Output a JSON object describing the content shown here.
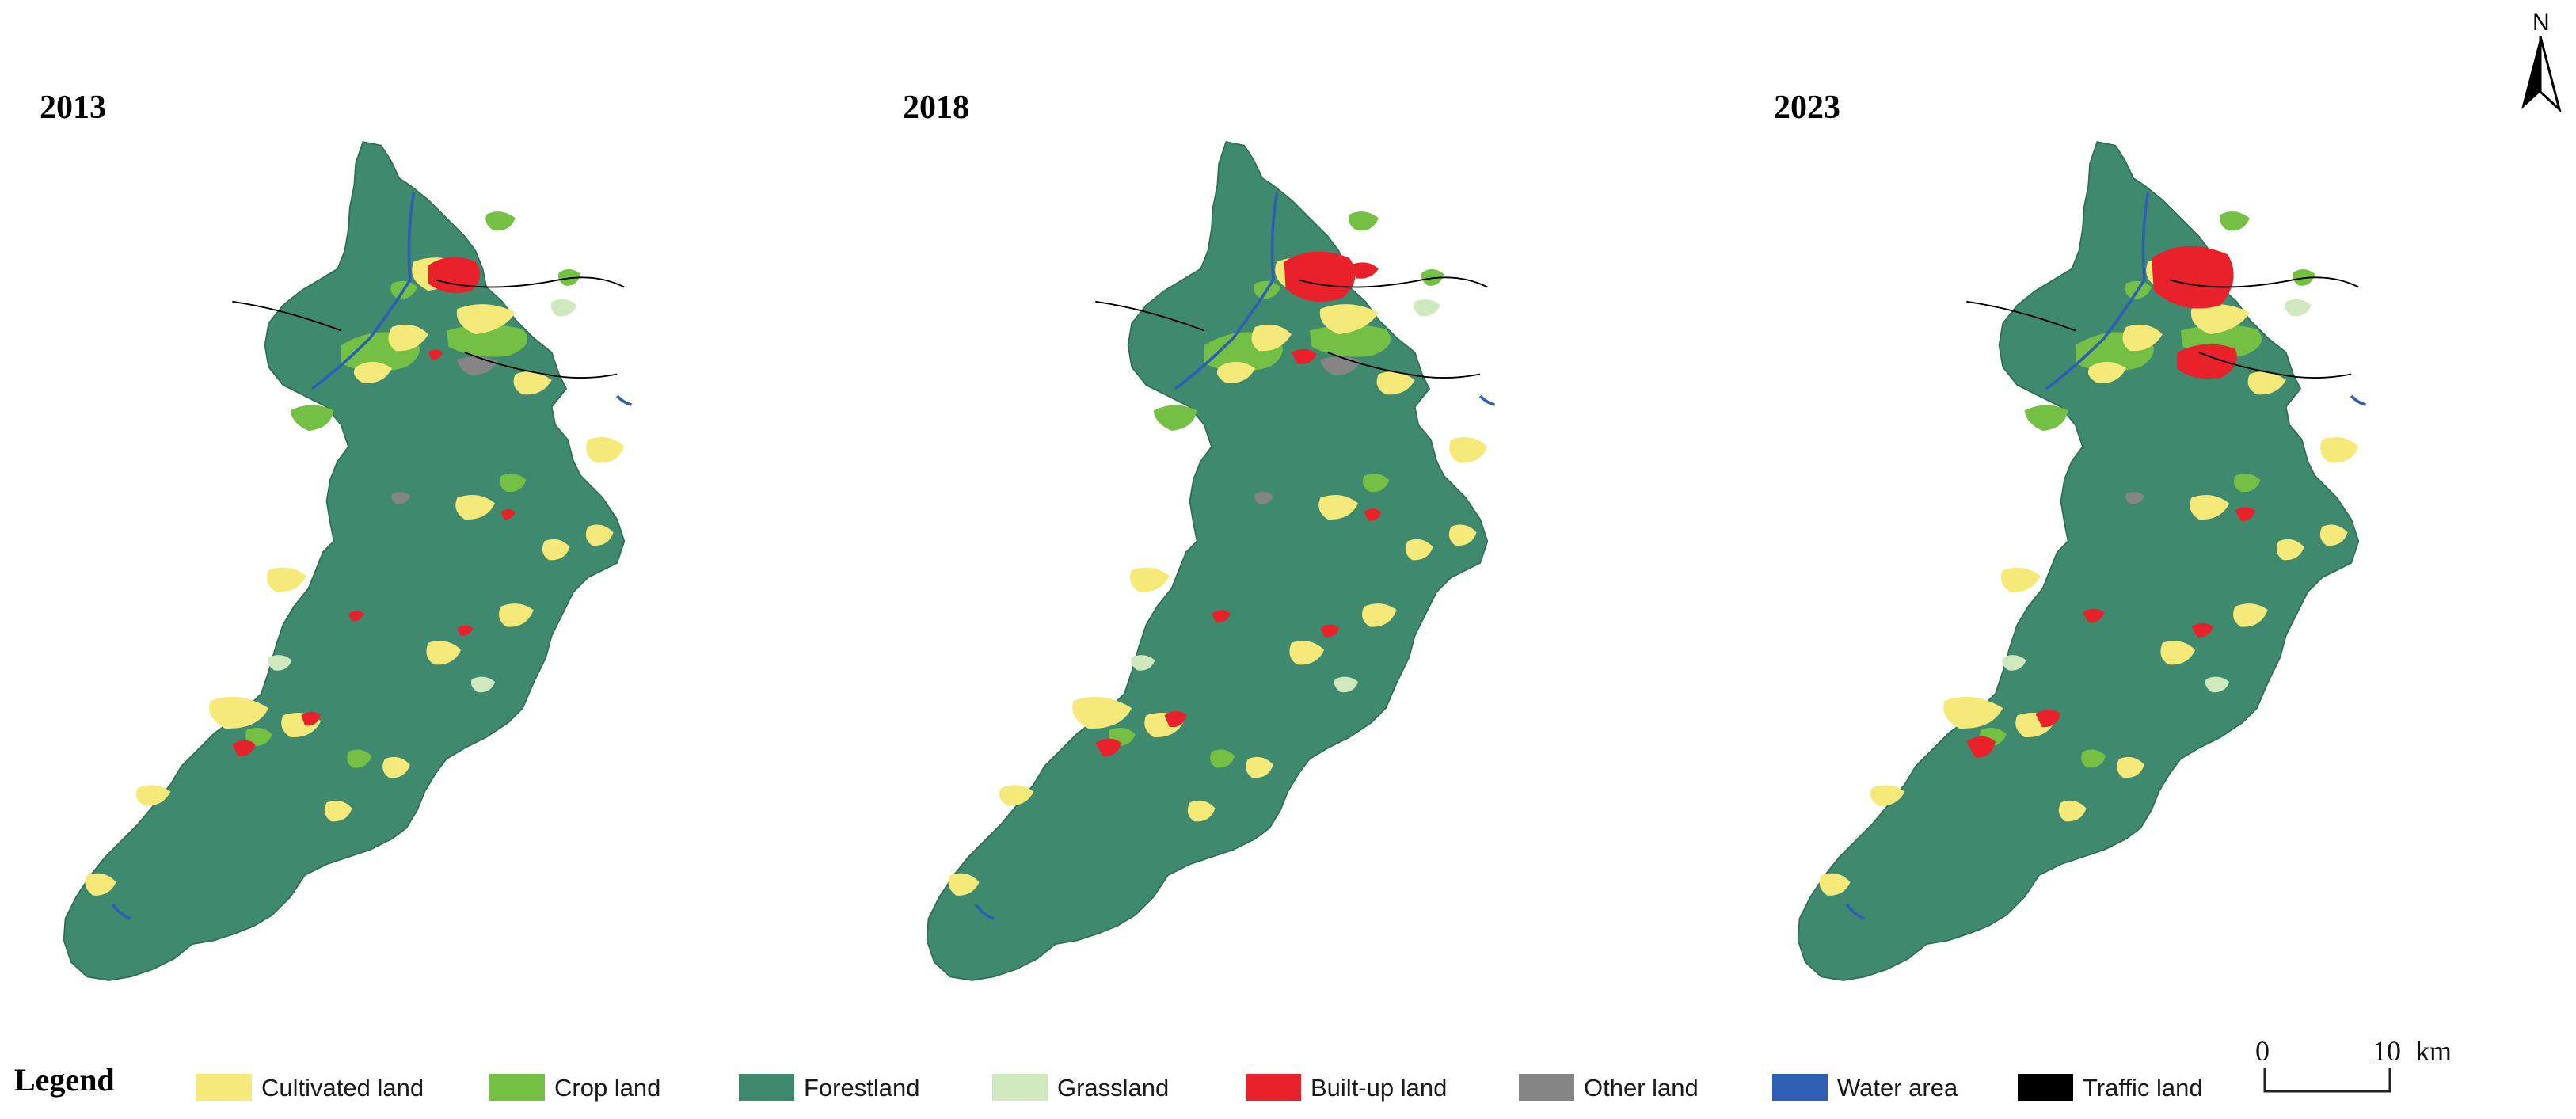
{
  "maps": [
    {
      "year": "2013"
    },
    {
      "year": "2018"
    },
    {
      "year": "2023"
    }
  ],
  "north_arrow": {
    "label": "N",
    "icon": "north-arrow-icon"
  },
  "legend": {
    "title": "Legend",
    "items": [
      {
        "label": "Cultivated land",
        "color": "#f5e97a"
      },
      {
        "label": "Crop land",
        "color": "#74c044"
      },
      {
        "label": "Forestland",
        "color": "#3f8a6e"
      },
      {
        "label": "Grassland",
        "color": "#cfe8bd"
      },
      {
        "label": "Built-up land",
        "color": "#e8212a"
      },
      {
        "label": "Other land",
        "color": "#858585"
      },
      {
        "label": "Water area",
        "color": "#2f5fb3"
      },
      {
        "label": "Traffic land",
        "color": "#000000"
      }
    ]
  },
  "scale_bar": {
    "start": "0",
    "end": "10",
    "unit": "km"
  }
}
